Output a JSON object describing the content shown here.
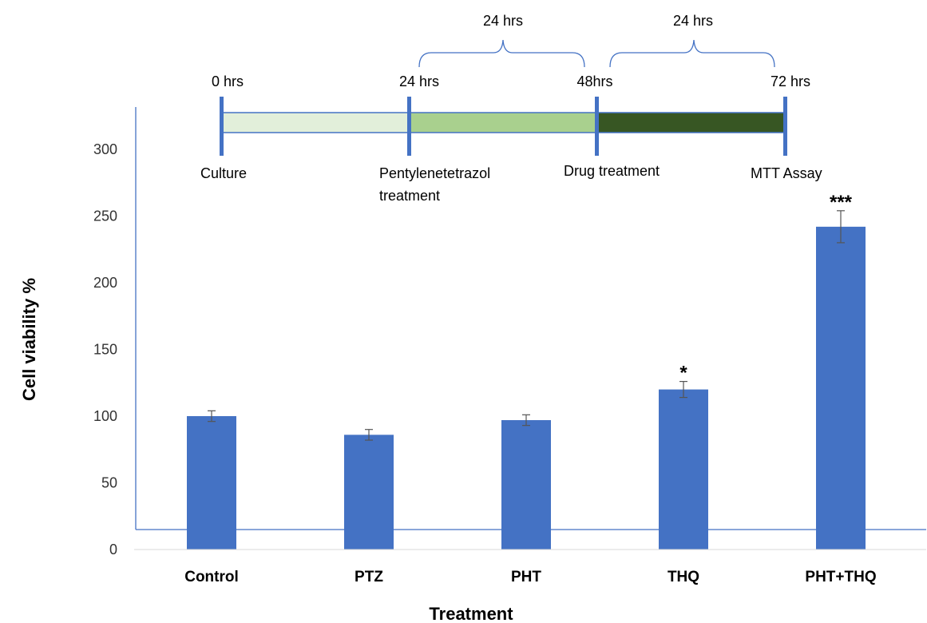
{
  "chart_data": {
    "type": "bar",
    "title": "",
    "xlabel": "Treatment",
    "ylabel": "Cell viability %",
    "categories": [
      "Control",
      "PTZ",
      "PHT",
      "THQ",
      "PHT+THQ"
    ],
    "values": [
      100,
      86,
      97,
      120,
      242
    ],
    "errors": [
      4,
      4,
      4,
      6,
      12
    ],
    "significance": [
      "",
      "",
      "",
      "*",
      "***"
    ],
    "ylim": [
      0,
      300
    ],
    "yticks": [
      0,
      50,
      100,
      150,
      200,
      250,
      300
    ],
    "grid": false,
    "bar_color": "#4472C4"
  },
  "timeline": {
    "time_labels": [
      "0 hrs",
      "24 hrs",
      "48hrs",
      "72 hrs"
    ],
    "stage_labels": [
      "Culture",
      "Pentylenetetrazol",
      "treatment",
      "Drug treatment",
      "MTT Assay"
    ],
    "brace_labels": [
      "24 hrs",
      "24 hrs"
    ],
    "segment_colors": [
      "#E2EFDA",
      "#A9D08E",
      "#375623"
    ],
    "marker_color": "#4472C4"
  }
}
